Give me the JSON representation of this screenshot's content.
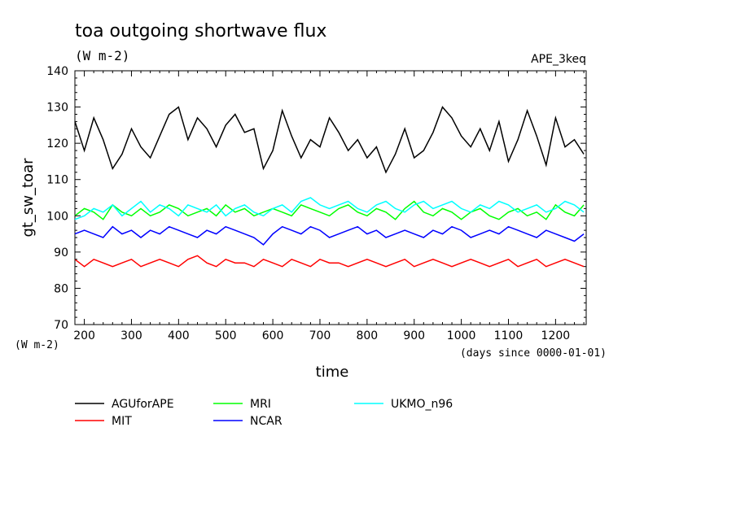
{
  "chart_data": {
    "type": "line",
    "title": "toa outgoing shortwave flux",
    "subtitle": "(W m-2)",
    "run_label": "APE_3keq",
    "ylabel": "gt_sw_toar",
    "yunits": "(W m-2)",
    "xlabel": "time",
    "xunits": "(days since 0000-01-01)",
    "xlim": [
      180,
      1265
    ],
    "ylim": [
      70,
      140
    ],
    "xticks": [
      "200",
      "300",
      "400",
      "500",
      "600",
      "700",
      "800",
      "900",
      "1000",
      "1100",
      "1200"
    ],
    "yticks": [
      "70",
      "80",
      "90",
      "100",
      "110",
      "120",
      "130",
      "140"
    ],
    "grid": false,
    "legend_position": "bottom",
    "x": [
      180,
      200,
      220,
      240,
      260,
      280,
      300,
      320,
      340,
      360,
      380,
      400,
      420,
      440,
      460,
      480,
      500,
      520,
      540,
      560,
      580,
      600,
      620,
      640,
      660,
      680,
      700,
      720,
      740,
      760,
      780,
      800,
      820,
      840,
      860,
      880,
      900,
      920,
      940,
      960,
      980,
      1000,
      1020,
      1040,
      1060,
      1080,
      1100,
      1120,
      1140,
      1160,
      1180,
      1200,
      1220,
      1240,
      1260
    ],
    "series": [
      {
        "name": "AGUforAPE",
        "color": "#000000",
        "values": [
          126,
          118,
          127,
          121,
          113,
          117,
          124,
          119,
          116,
          122,
          128,
          130,
          121,
          127,
          124,
          119,
          125,
          128,
          123,
          124,
          113,
          118,
          129,
          122,
          116,
          121,
          119,
          127,
          123,
          118,
          121,
          116,
          119,
          112,
          117,
          124,
          116,
          118,
          123,
          130,
          127,
          122,
          119,
          124,
          118,
          126,
          115,
          121,
          129,
          122,
          114,
          127,
          119,
          121,
          117
        ]
      },
      {
        "name": "MIT",
        "color": "#ff0000",
        "values": [
          88,
          86,
          88,
          87,
          86,
          87,
          88,
          86,
          87,
          88,
          87,
          86,
          88,
          89,
          87,
          86,
          88,
          87,
          87,
          86,
          88,
          87,
          86,
          88,
          87,
          86,
          88,
          87,
          87,
          86,
          87,
          88,
          87,
          86,
          87,
          88,
          86,
          87,
          88,
          87,
          86,
          87,
          88,
          87,
          86,
          87,
          88,
          86,
          87,
          88,
          86,
          87,
          88,
          87,
          86
        ]
      },
      {
        "name": "MRI",
        "color": "#00ff00",
        "values": [
          100,
          102,
          101,
          99,
          103,
          101,
          100,
          102,
          100,
          101,
          103,
          102,
          100,
          101,
          102,
          100,
          103,
          101,
          102,
          100,
          101,
          102,
          101,
          100,
          103,
          102,
          101,
          100,
          102,
          103,
          101,
          100,
          102,
          101,
          99,
          102,
          104,
          101,
          100,
          102,
          101,
          99,
          101,
          102,
          100,
          99,
          101,
          102,
          100,
          101,
          99,
          103,
          101,
          100,
          103
        ]
      },
      {
        "name": "NCAR",
        "color": "#0000ff",
        "values": [
          95,
          96,
          95,
          94,
          97,
          95,
          96,
          94,
          96,
          95,
          97,
          96,
          95,
          94,
          96,
          95,
          97,
          96,
          95,
          94,
          92,
          95,
          97,
          96,
          95,
          97,
          96,
          94,
          95,
          96,
          97,
          95,
          96,
          94,
          95,
          96,
          95,
          94,
          96,
          95,
          97,
          96,
          94,
          95,
          96,
          95,
          97,
          96,
          95,
          94,
          96,
          95,
          94,
          93,
          95
        ]
      },
      {
        "name": "UKMO_n96",
        "color": "#00ffff",
        "values": [
          99,
          100,
          102,
          101,
          103,
          100,
          102,
          104,
          101,
          103,
          102,
          100,
          103,
          102,
          101,
          103,
          100,
          102,
          103,
          101,
          100,
          102,
          103,
          101,
          104,
          105,
          103,
          102,
          103,
          104,
          102,
          101,
          103,
          104,
          102,
          101,
          103,
          104,
          102,
          103,
          104,
          102,
          101,
          103,
          102,
          104,
          103,
          101,
          102,
          103,
          101,
          102,
          104,
          103,
          101
        ]
      }
    ]
  }
}
